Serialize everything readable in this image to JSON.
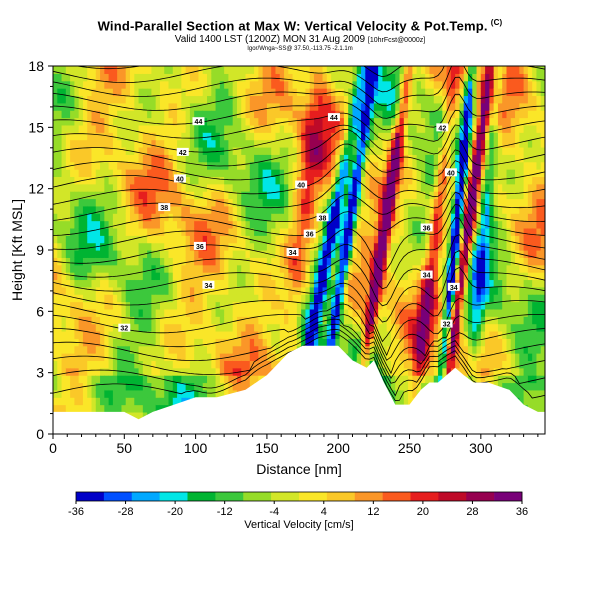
{
  "chart_data": {
    "type": "heatmap",
    "title": "Wind-Parallel Section at Max W: Vertical Velocity & Pot.Temp.",
    "title_mark": "(C)",
    "subtitle_main": "Valid 1400 LST (1200Z) MON 31 Aug 2009",
    "subtitle_small": "[10hrFcst@0000z]",
    "subsubtitle": "Igor/Wnga~SS@ 37.50,-113.75  -2.1.1m",
    "xlabel": "Distance [nm]",
    "ylabel": "Height [Kft MSL]",
    "xlim": [
      0,
      345
    ],
    "ylim": [
      0,
      18
    ],
    "xticks": [
      "0",
      "50",
      "100",
      "150",
      "200",
      "250",
      "300"
    ],
    "yticks": [
      "0",
      "3",
      "6",
      "9",
      "12",
      "15",
      "18"
    ],
    "colorbar": {
      "label": "Vertical Velocity [cm/s]",
      "ticks": [
        "-36",
        "-28",
        "-20",
        "-12",
        "-4",
        "4",
        "12",
        "20",
        "28",
        "36"
      ],
      "colors": [
        "#0000c8",
        "#0050ff",
        "#00a8ff",
        "#00e6e6",
        "#00b432",
        "#3cc83c",
        "#96dc28",
        "#d2e628",
        "#fae628",
        "#fac828",
        "#fa9628",
        "#fa5a1e",
        "#e61e1e",
        "#be0a28",
        "#960050",
        "#780078"
      ]
    },
    "contour_labels": [
      {
        "text": "44",
        "x": 102,
        "y": 15.3
      },
      {
        "text": "44",
        "x": 197,
        "y": 15.5
      },
      {
        "text": "42",
        "x": 91,
        "y": 13.8
      },
      {
        "text": "42",
        "x": 273,
        "y": 15.0
      },
      {
        "text": "40",
        "x": 89,
        "y": 12.5
      },
      {
        "text": "40",
        "x": 174,
        "y": 12.2
      },
      {
        "text": "40",
        "x": 279,
        "y": 12.8
      },
      {
        "text": "38",
        "x": 78,
        "y": 11.1
      },
      {
        "text": "38",
        "x": 189,
        "y": 10.6
      },
      {
        "text": "36",
        "x": 103,
        "y": 9.2
      },
      {
        "text": "36",
        "x": 180,
        "y": 9.8
      },
      {
        "text": "36",
        "x": 262,
        "y": 10.1
      },
      {
        "text": "34",
        "x": 109,
        "y": 7.3
      },
      {
        "text": "34",
        "x": 168,
        "y": 8.9
      },
      {
        "text": "34",
        "x": 262,
        "y": 7.8
      },
      {
        "text": "34",
        "x": 281,
        "y": 7.2
      },
      {
        "text": "32",
        "x": 50,
        "y": 5.2
      },
      {
        "text": "32",
        "x": 276,
        "y": 5.4
      }
    ]
  }
}
